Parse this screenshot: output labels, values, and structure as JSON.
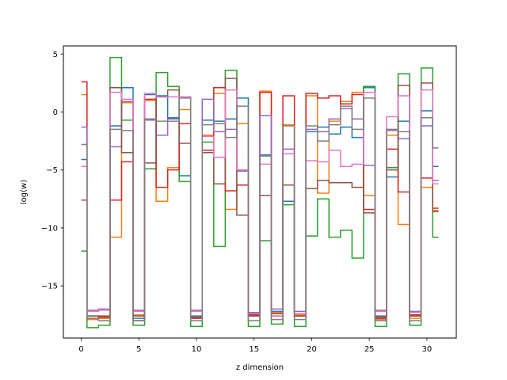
{
  "chart_data": {
    "type": "line",
    "drawstyle": "steps-mid",
    "title": "",
    "xlabel": "z dimension",
    "ylabel": "log(w)",
    "xlim": [
      -1.55,
      32.55
    ],
    "ylim": [
      -19.5,
      5.7
    ],
    "xticks": [
      0,
      5,
      10,
      15,
      20,
      25,
      30
    ],
    "yticks": [
      5,
      0,
      -5,
      -10,
      -15
    ],
    "grid": false,
    "legend": "none",
    "x": [
      0,
      1,
      2,
      3,
      4,
      5,
      6,
      7,
      8,
      9,
      10,
      11,
      12,
      13,
      14,
      15,
      16,
      17,
      18,
      19,
      20,
      21,
      22,
      23,
      24,
      25,
      26,
      27,
      28,
      29,
      30,
      31
    ],
    "series": [
      {
        "color": "#1f77b4",
        "values": [
          -4.1,
          -17.6,
          -17.7,
          -1.2,
          2.1,
          -17.8,
          1.5,
          1.4,
          -0.5,
          -5.5,
          -17.6,
          -0.7,
          -0.8,
          -0.6,
          1.2,
          -17.6,
          -3.7,
          -17.2,
          -7.7,
          -17.4,
          -1.7,
          -1.3,
          -1.9,
          -1.3,
          -2.2,
          2.2,
          -17.7,
          -5.6,
          -0.8,
          -17.6,
          0.1,
          -4.7
        ]
      },
      {
        "color": "#ff7f0e",
        "values": [
          1.5,
          -17.9,
          -17.8,
          -10.8,
          0.8,
          -17.5,
          1.0,
          -7.7,
          -4.8,
          0.2,
          -17.7,
          -2.0,
          1.6,
          -8.4,
          -1.0,
          -17.4,
          1.8,
          -17.3,
          -1.1,
          -17.5,
          1.4,
          -7.0,
          -0.8,
          0.9,
          1.7,
          -7.2,
          -17.9,
          -2.0,
          -9.7,
          -17.8,
          -6.5,
          -8.5
        ]
      },
      {
        "color": "#2ca02c",
        "values": [
          -12.0,
          -18.6,
          -18.4,
          4.7,
          -0.7,
          -18.4,
          -4.9,
          3.4,
          2.2,
          -6.0,
          -18.5,
          -2.6,
          -11.6,
          3.6,
          -5.0,
          -18.5,
          -11.1,
          -18.3,
          -8.0,
          -18.5,
          -10.7,
          -7.5,
          -10.8,
          -10.2,
          -12.6,
          2.1,
          -18.5,
          -4.8,
          3.3,
          -18.4,
          3.8,
          -10.8
        ]
      },
      {
        "color": "#d62728",
        "values": [
          2.6,
          -17.8,
          -17.7,
          -7.6,
          -4.3,
          -18.0,
          1.1,
          -6.5,
          -5.0,
          -1.0,
          -17.8,
          -3.3,
          2.1,
          -6.8,
          -6.3,
          -17.5,
          1.7,
          -17.6,
          1.4,
          -17.6,
          1.6,
          1.2,
          1.4,
          0.7,
          1.5,
          -8.4,
          -17.8,
          -3.2,
          -6.9,
          -17.5,
          -5.7,
          -8.3
        ]
      },
      {
        "color": "#9467bd",
        "values": [
          -1.3,
          -17.1,
          -17.0,
          -3.0,
          0.9,
          -17.1,
          -0.7,
          -2.0,
          -0.6,
          1.3,
          -17.1,
          1.1,
          -1.7,
          -1.5,
          -5.1,
          -17.3,
          -0.3,
          -17.0,
          -3.2,
          -17.2,
          -1.5,
          -1.7,
          -0.6,
          0.3,
          -0.6,
          -4.6,
          -17.1,
          -1.6,
          -2.3,
          -17.2,
          -1.2,
          -5.9
        ]
      },
      {
        "color": "#8c564b",
        "values": [
          -7.6,
          -17.6,
          -17.6,
          2.1,
          -3.5,
          -17.6,
          -4.4,
          1.3,
          1.9,
          -2.7,
          -17.7,
          -3.5,
          -6.2,
          2.9,
          -8.9,
          -17.6,
          -7.2,
          -17.4,
          -6.3,
          -17.6,
          -6.6,
          -5.9,
          -6.1,
          -6.1,
          -6.5,
          -8.7,
          -17.6,
          -5.0,
          2.3,
          -17.6,
          2.5,
          -8.6
        ]
      },
      {
        "color": "#e377c2",
        "values": [
          -4.7,
          -17.2,
          -17.1,
          1.7,
          1.1,
          -17.2,
          1.6,
          1.3,
          1.3,
          1.3,
          -17.2,
          -2.1,
          -3.9,
          1.9,
          -5.0,
          -17.4,
          -4.5,
          -17.6,
          -3.6,
          -17.4,
          -4.2,
          -4.3,
          -3.3,
          -4.7,
          -4.5,
          1.7,
          -17.2,
          -0.4,
          1.4,
          -17.3,
          1.9,
          -6.2
        ]
      },
      {
        "color": "#7f7f7f",
        "values": [
          -2.8,
          -17.8,
          -18.0,
          -1.5,
          -1.6,
          -18.0,
          -0.6,
          -0.8,
          -0.8,
          1.2,
          -18.0,
          -1.1,
          -1.0,
          -2.2,
          0.5,
          -18.0,
          -3.8,
          -17.9,
          -1.2,
          -17.9,
          -1.2,
          -2.5,
          -1.1,
          0.5,
          -1.5,
          1.2,
          -18.0,
          -1.5,
          -1.7,
          -18.0,
          -0.5,
          -3.1
        ]
      }
    ]
  }
}
